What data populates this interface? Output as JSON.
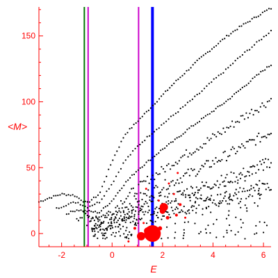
{
  "chart_data": {
    "type": "scatter",
    "xlabel": "E",
    "ylabel": "<M>",
    "xlim": [
      -2.9,
      6.3
    ],
    "ylim": [
      -10,
      172
    ],
    "x_ticks": [
      -2,
      0,
      2,
      4,
      6
    ],
    "y_ticks": [
      0,
      50,
      100,
      150
    ],
    "axis_color": "#ff0000",
    "grid": false,
    "vertical_lines": [
      {
        "x": -1.1,
        "color": "#007700"
      },
      {
        "x": -0.95,
        "color": "#cc00cc"
      },
      {
        "x": 1.05,
        "color": "#cc00cc"
      },
      {
        "x": 1.6,
        "color": "#0000ff"
      }
    ],
    "bands": [
      {
        "x": [
          -2.9,
          -2.5,
          -2.0,
          -1.5,
          -1.0,
          -0.5,
          0.0,
          0.5,
          1.0,
          1.5,
          2.0,
          2.5,
          3.0,
          3.5,
          4.0,
          4.5,
          5.0,
          5.5,
          6.0,
          6.3
        ],
        "y": [
          24,
          27,
          30,
          29,
          23,
          30,
          55,
          75,
          85,
          95,
          105,
          115,
          124,
          133,
          141,
          149,
          156,
          162,
          168,
          171
        ]
      },
      {
        "x": [
          -2.2,
          -1.8,
          -1.4,
          -1.0,
          -0.5,
          0.0,
          0.5,
          1.0,
          1.5,
          2.0,
          2.5,
          3.0,
          3.5,
          4.0,
          4.5,
          5.0,
          5.5,
          6.0,
          6.3
        ],
        "y": [
          19,
          22,
          24,
          20,
          24,
          38,
          55,
          66,
          75,
          83,
          91,
          99,
          107,
          116,
          124,
          133,
          141,
          149,
          154
        ]
      },
      {
        "x": [
          -1.8,
          -1.4,
          -1.0,
          -0.5,
          0.0,
          0.5,
          1.0,
          1.5,
          2.0,
          2.5,
          3.0,
          3.5,
          4.0,
          4.5,
          5.0,
          5.5,
          6.0,
          6.3
        ],
        "y": [
          15,
          18,
          17,
          16,
          25,
          38,
          48,
          56,
          64,
          71,
          79,
          86,
          93,
          100,
          108,
          116,
          124,
          128
        ]
      },
      {
        "x": [
          -1.4,
          -1.0,
          -0.5,
          0.0,
          0.5,
          1.0,
          1.5,
          2.0,
          2.5,
          3.0,
          3.5,
          4.0,
          4.5,
          5.0,
          5.5,
          6.0,
          6.3
        ],
        "y": [
          13,
          13,
          12,
          17,
          27,
          34,
          42,
          48,
          55,
          61,
          67,
          73,
          79,
          86,
          92,
          98,
          102
        ]
      },
      {
        "x": [
          -1.0,
          -0.5,
          0.0,
          0.5,
          1.0,
          1.5,
          2.0,
          2.5,
          3.0,
          3.5,
          4.0,
          4.5,
          5.0,
          5.5,
          6.0,
          6.3
        ],
        "y": [
          10,
          9,
          12,
          20,
          26,
          31,
          36,
          40,
          45,
          49,
          54,
          59,
          64,
          69,
          74,
          78
        ]
      },
      {
        "x": [
          -0.8,
          -0.4,
          0.0,
          0.5,
          1.0,
          1.5,
          2.0,
          2.5,
          3.0,
          3.5,
          4.0,
          4.5,
          5.0,
          5.5,
          6.0,
          6.3
        ],
        "y": [
          7,
          6,
          8,
          14,
          18,
          22,
          25,
          28,
          32,
          35,
          38,
          41,
          44,
          48,
          52,
          55
        ]
      },
      {
        "x": [
          -0.6,
          -0.3,
          0.0,
          0.5,
          1.0,
          1.5,
          2.0,
          2.5,
          3.0,
          3.5,
          4.0,
          4.5,
          5.0,
          5.5,
          6.0,
          6.3
        ],
        "y": [
          3,
          2,
          4,
          8,
          11,
          13,
          15,
          18,
          20,
          22,
          25,
          27,
          30,
          32,
          34,
          36
        ]
      }
    ],
    "red_points": [
      {
        "x": 1.6,
        "y": 0,
        "size": 12
      },
      {
        "x": 1.15,
        "y": -2,
        "size": 6
      },
      {
        "x": 1.4,
        "y": 2,
        "size": 5
      },
      {
        "x": 2.05,
        "y": 20,
        "size": 6
      },
      {
        "x": 2.0,
        "y": 17,
        "size": 4
      },
      {
        "x": 2.2,
        "y": 12,
        "size": 2.5
      },
      {
        "x": 1.9,
        "y": 4,
        "size": 3
      },
      {
        "x": 2.55,
        "y": 14,
        "size": 2
      },
      {
        "x": 2.7,
        "y": 22,
        "size": 2
      },
      {
        "x": 2.45,
        "y": 30,
        "size": 1.5
      },
      {
        "x": 1.25,
        "y": 8,
        "size": 1.5
      },
      {
        "x": 0.9,
        "y": 4,
        "size": 2
      },
      {
        "x": 0.65,
        "y": -6,
        "size": 1.5
      },
      {
        "x": 2.9,
        "y": 12,
        "size": 1.5
      },
      {
        "x": 1.35,
        "y": 34,
        "size": 1.5
      },
      {
        "x": 2.6,
        "y": 46,
        "size": 1.5
      },
      {
        "x": 2.25,
        "y": 38,
        "size": 1.5
      },
      {
        "x": 1.85,
        "y": 25,
        "size": 1.5
      }
    ]
  }
}
